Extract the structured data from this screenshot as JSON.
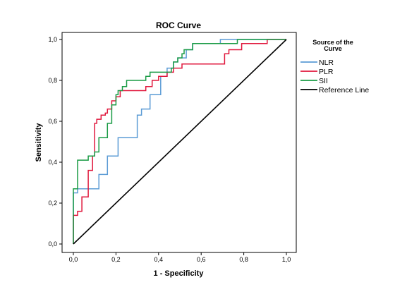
{
  "chart_data": {
    "type": "line",
    "title": "ROC Curve",
    "xlabel": "1 - Specificity",
    "ylabel": "Sensitivity",
    "xlim": [
      0,
      1
    ],
    "ylim": [
      0,
      1
    ],
    "x_ticks": [
      "0,0",
      "0,2",
      "0,4",
      "0,6",
      "0,8",
      "1,0"
    ],
    "y_ticks": [
      "0,0",
      "0,2",
      "0,4",
      "0,6",
      "0,8",
      "1,0"
    ],
    "grid": false,
    "legend": {
      "title_line1": "Source of the",
      "title_line2": "Curve",
      "position": "right"
    },
    "series": [
      {
        "name": "NLR",
        "color": "#5b9bd5",
        "points": [
          [
            0,
            0
          ],
          [
            0,
            0.25
          ],
          [
            0.02,
            0.25
          ],
          [
            0.02,
            0.27
          ],
          [
            0.12,
            0.27
          ],
          [
            0.12,
            0.34
          ],
          [
            0.16,
            0.34
          ],
          [
            0.16,
            0.43
          ],
          [
            0.21,
            0.43
          ],
          [
            0.21,
            0.52
          ],
          [
            0.3,
            0.52
          ],
          [
            0.3,
            0.63
          ],
          [
            0.32,
            0.63
          ],
          [
            0.32,
            0.66
          ],
          [
            0.36,
            0.66
          ],
          [
            0.36,
            0.73
          ],
          [
            0.41,
            0.73
          ],
          [
            0.41,
            0.82
          ],
          [
            0.44,
            0.82
          ],
          [
            0.44,
            0.86
          ],
          [
            0.47,
            0.86
          ],
          [
            0.47,
            0.89
          ],
          [
            0.49,
            0.89
          ],
          [
            0.49,
            0.91
          ],
          [
            0.53,
            0.91
          ],
          [
            0.53,
            0.95
          ],
          [
            0.56,
            0.95
          ],
          [
            0.56,
            0.98
          ],
          [
            0.69,
            0.98
          ],
          [
            0.69,
            1.0
          ],
          [
            1.0,
            1.0
          ]
        ]
      },
      {
        "name": "PLR",
        "color": "#e0173c",
        "points": [
          [
            0,
            0
          ],
          [
            0,
            0.14
          ],
          [
            0.02,
            0.14
          ],
          [
            0.02,
            0.16
          ],
          [
            0.04,
            0.16
          ],
          [
            0.04,
            0.23
          ],
          [
            0.07,
            0.23
          ],
          [
            0.07,
            0.36
          ],
          [
            0.09,
            0.36
          ],
          [
            0.09,
            0.43
          ],
          [
            0.1,
            0.43
          ],
          [
            0.1,
            0.59
          ],
          [
            0.11,
            0.59
          ],
          [
            0.11,
            0.61
          ],
          [
            0.13,
            0.61
          ],
          [
            0.13,
            0.63
          ],
          [
            0.15,
            0.63
          ],
          [
            0.15,
            0.64
          ],
          [
            0.16,
            0.64
          ],
          [
            0.16,
            0.66
          ],
          [
            0.18,
            0.66
          ],
          [
            0.18,
            0.7
          ],
          [
            0.2,
            0.7
          ],
          [
            0.2,
            0.72
          ],
          [
            0.22,
            0.72
          ],
          [
            0.22,
            0.75
          ],
          [
            0.34,
            0.75
          ],
          [
            0.34,
            0.77
          ],
          [
            0.37,
            0.77
          ],
          [
            0.37,
            0.8
          ],
          [
            0.4,
            0.8
          ],
          [
            0.4,
            0.82
          ],
          [
            0.44,
            0.82
          ],
          [
            0.44,
            0.84
          ],
          [
            0.47,
            0.84
          ],
          [
            0.47,
            0.86
          ],
          [
            0.51,
            0.86
          ],
          [
            0.51,
            0.88
          ],
          [
            0.71,
            0.88
          ],
          [
            0.71,
            0.93
          ],
          [
            0.73,
            0.93
          ],
          [
            0.73,
            0.95
          ],
          [
            0.79,
            0.95
          ],
          [
            0.79,
            0.98
          ],
          [
            0.91,
            0.98
          ],
          [
            0.91,
            1.0
          ],
          [
            1.0,
            1.0
          ]
        ]
      },
      {
        "name": "SII",
        "color": "#1a9b45",
        "points": [
          [
            0,
            0
          ],
          [
            0,
            0.27
          ],
          [
            0.02,
            0.27
          ],
          [
            0.02,
            0.41
          ],
          [
            0.07,
            0.41
          ],
          [
            0.07,
            0.43
          ],
          [
            0.1,
            0.43
          ],
          [
            0.1,
            0.45
          ],
          [
            0.12,
            0.45
          ],
          [
            0.12,
            0.52
          ],
          [
            0.16,
            0.52
          ],
          [
            0.16,
            0.59
          ],
          [
            0.18,
            0.59
          ],
          [
            0.18,
            0.68
          ],
          [
            0.2,
            0.68
          ],
          [
            0.2,
            0.73
          ],
          [
            0.21,
            0.73
          ],
          [
            0.21,
            0.75
          ],
          [
            0.23,
            0.75
          ],
          [
            0.23,
            0.77
          ],
          [
            0.25,
            0.77
          ],
          [
            0.25,
            0.8
          ],
          [
            0.34,
            0.8
          ],
          [
            0.34,
            0.82
          ],
          [
            0.36,
            0.82
          ],
          [
            0.36,
            0.84
          ],
          [
            0.46,
            0.84
          ],
          [
            0.46,
            0.86
          ],
          [
            0.47,
            0.86
          ],
          [
            0.47,
            0.89
          ],
          [
            0.49,
            0.89
          ],
          [
            0.49,
            0.91
          ],
          [
            0.51,
            0.91
          ],
          [
            0.51,
            0.93
          ],
          [
            0.52,
            0.93
          ],
          [
            0.52,
            0.95
          ],
          [
            0.56,
            0.95
          ],
          [
            0.56,
            0.98
          ],
          [
            0.77,
            0.98
          ],
          [
            0.77,
            1.0
          ],
          [
            1.0,
            1.0
          ]
        ]
      },
      {
        "name": "Reference Line",
        "color": "#000000",
        "points": [
          [
            0,
            0
          ],
          [
            1,
            1
          ]
        ]
      }
    ]
  }
}
